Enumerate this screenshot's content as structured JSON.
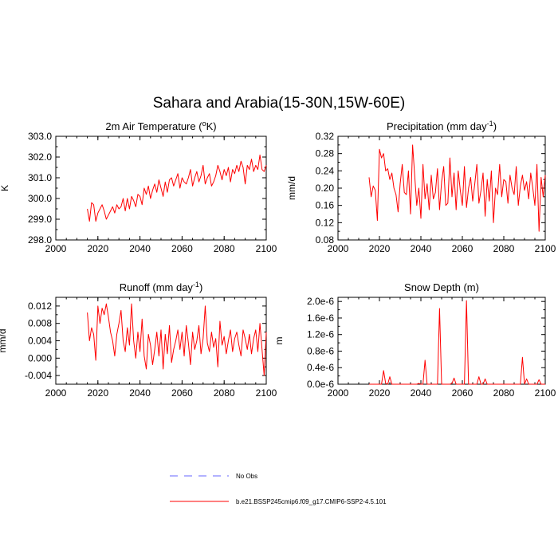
{
  "title": "Sahara and Arabia(15-30N,15W-60E)",
  "legend": [
    {
      "label": "No Obs",
      "color": "#6666ff",
      "dash": true
    },
    {
      "label": "b.e21.BSSP245cmip6.f09_g17.CMIP6-SSP2-4.5.101",
      "color": "#ff0000",
      "dash": false
    }
  ],
  "chart_data": [
    {
      "type": "line",
      "title": "2m Air Temperature (",
      "title_sup": "o",
      "title_end": "K)",
      "xlabel": "",
      "ylabel": "K",
      "xlim": [
        2000,
        2100
      ],
      "ylim": [
        298.0,
        303.0
      ],
      "xticks": [
        2000,
        2020,
        2040,
        2060,
        2080,
        2100
      ],
      "yticks": [
        298.0,
        299.0,
        300.0,
        301.0,
        302.0,
        303.0
      ],
      "ytick_labels": [
        "298.0",
        "299.0",
        "300.0",
        "301.0",
        "302.0",
        "303.0"
      ],
      "x_start": 2015,
      "values": [
        299.5,
        298.9,
        299.8,
        299.7,
        298.9,
        299.3,
        299.5,
        299.7,
        299.4,
        299.0,
        299.2,
        299.4,
        299.6,
        299.3,
        299.7,
        299.5,
        299.6,
        300.0,
        299.4,
        300.0,
        299.5,
        300.1,
        299.9,
        299.6,
        300.2,
        300.1,
        299.7,
        300.5,
        300.2,
        300.6,
        300.0,
        300.4,
        300.7,
        300.3,
        300.9,
        300.5,
        300.1,
        300.8,
        300.3,
        300.9,
        301.0,
        300.6,
        300.9,
        301.2,
        300.5,
        301.0,
        300.8,
        300.7,
        301.0,
        301.4,
        300.6,
        301.0,
        301.3,
        300.8,
        301.1,
        301.6,
        300.7,
        301.0,
        301.2,
        300.6,
        300.8,
        301.1,
        301.6,
        301.3,
        300.9,
        301.4,
        301.1,
        301.5,
        300.8,
        301.4,
        301.2,
        301.6,
        301.3,
        301.8,
        301.5,
        300.7,
        301.6,
        301.4,
        301.9,
        301.3,
        301.6,
        301.4,
        302.1,
        301.4,
        301.3,
        301.6
      ],
      "stroke": "#ff0000"
    },
    {
      "type": "line",
      "title": "Precipitation (mm day",
      "title_sup": "-1",
      "title_end": ")",
      "xlabel": "",
      "ylabel": "mm/d",
      "xlim": [
        2000,
        2100
      ],
      "ylim": [
        0.08,
        0.32
      ],
      "xticks": [
        2000,
        2020,
        2040,
        2060,
        2080,
        2100
      ],
      "yticks": [
        0.08,
        0.12,
        0.16,
        0.2,
        0.24,
        0.28,
        0.32
      ],
      "ytick_labels": [
        "0.08",
        "0.12",
        "0.16",
        "0.20",
        "0.24",
        "0.28",
        "0.32"
      ],
      "x_start": 2015,
      "values": [
        0.225,
        0.18,
        0.205,
        0.195,
        0.125,
        0.29,
        0.27,
        0.28,
        0.24,
        0.245,
        0.22,
        0.235,
        0.2,
        0.185,
        0.145,
        0.21,
        0.255,
        0.19,
        0.185,
        0.24,
        0.14,
        0.3,
        0.23,
        0.16,
        0.2,
        0.13,
        0.255,
        0.175,
        0.21,
        0.15,
        0.23,
        0.175,
        0.19,
        0.245,
        0.15,
        0.215,
        0.25,
        0.16,
        0.165,
        0.27,
        0.18,
        0.235,
        0.15,
        0.24,
        0.195,
        0.16,
        0.25,
        0.155,
        0.2,
        0.225,
        0.17,
        0.21,
        0.255,
        0.165,
        0.195,
        0.235,
        0.135,
        0.22,
        0.17,
        0.24,
        0.12,
        0.2,
        0.185,
        0.255,
        0.18,
        0.22,
        0.215,
        0.165,
        0.23,
        0.2,
        0.185,
        0.25,
        0.16,
        0.205,
        0.23,
        0.195,
        0.215,
        0.175,
        0.235,
        0.2,
        0.16,
        0.255,
        0.1,
        0.225,
        0.18,
        0.23
      ],
      "stroke": "#ff0000"
    },
    {
      "type": "line",
      "title": "Runoff (mm day",
      "title_sup": "-1",
      "title_end": ")",
      "xlabel": "",
      "ylabel": "mm/d",
      "xlim": [
        2000,
        2100
      ],
      "ylim": [
        -0.006,
        0.014
      ],
      "xticks": [
        2000,
        2020,
        2040,
        2060,
        2080,
        2100
      ],
      "yticks": [
        -0.004,
        0.0,
        0.004,
        0.008,
        0.012
      ],
      "ytick_labels": [
        "-0.004",
        "0.000",
        "0.004",
        "0.008",
        "0.012"
      ],
      "x_start": 2015,
      "values": [
        0.0105,
        0.004,
        0.007,
        0.0055,
        -0.0005,
        0.012,
        0.008,
        0.0115,
        0.01,
        0.0125,
        0.0095,
        0.006,
        0.004,
        0.0005,
        0.0055,
        0.008,
        0.011,
        0.004,
        0.0015,
        0.007,
        0.003,
        0.0125,
        0.004,
        0.0,
        0.006,
        0.0015,
        0.009,
        0.0005,
        -0.0025,
        0.0055,
        0.003,
        -0.0015,
        0.002,
        0.006,
        0.0005,
        0.0065,
        -0.0025,
        0.0055,
        0.001,
        0.0075,
        -0.001,
        0.002,
        0.004,
        0.0065,
        0.002,
        0.006,
        0.0005,
        0.0075,
        0.0035,
        -0.0015,
        0.006,
        0.002,
        0.004,
        0.0075,
        0.001,
        0.0045,
        0.012,
        0.0035,
        0.0015,
        0.006,
        0.0025,
        0.0045,
        -0.002,
        0.0085,
        0.003,
        0.005,
        0.001,
        0.004,
        0.0065,
        0.0015,
        0.0045,
        0.006,
        0.003,
        0.0005,
        0.0065,
        0.0045,
        0.002,
        0.0055,
        0.001,
        0.0045,
        0.0065,
        0.0015,
        0.008,
        0.002,
        -0.004,
        0.006
      ],
      "stroke": "#ff0000"
    },
    {
      "type": "line",
      "title": "Snow Depth (m)",
      "title_sup": "",
      "title_end": "",
      "xlabel": "",
      "ylabel": "m",
      "xlim": [
        2000,
        2100
      ],
      "ylim": [
        0.0,
        2.1e-06
      ],
      "xticks": [
        2000,
        2020,
        2040,
        2060,
        2080,
        2100
      ],
      "yticks": [
        0.0,
        4e-07,
        8e-07,
        1.2e-06,
        1.6e-06,
        2e-06
      ],
      "ytick_labels": [
        "0.0e-6",
        "0.4e-6",
        "0.8e-6",
        "1.2e-6",
        "1.6e-6",
        "2.0e-6"
      ],
      "x_start": 2015,
      "values": [
        0.0,
        0.0,
        0.0,
        0.0,
        0.0,
        0.0,
        0.0,
        3.3e-07,
        2e-08,
        0.0,
        1.8e-07,
        0.0,
        0.0,
        0.0,
        0.0,
        0.0,
        0.0,
        0.0,
        0.0,
        0.0,
        0.0,
        0.0,
        0.0,
        0.0,
        2e-08,
        0.0,
        0.0,
        5.8e-07,
        0.0,
        0.0,
        0.0,
        0.0,
        0.0,
        0.0,
        1.83e-06,
        0.0,
        0.0,
        0.0,
        0.0,
        0.0,
        2e-08,
        1.5e-07,
        0.0,
        0.0,
        0.0,
        0.0,
        0.0,
        2.02e-06,
        0.0,
        0.0,
        0.0,
        0.0,
        0.0,
        1.8e-07,
        0.0,
        0.0,
        1.3e-07,
        0.0,
        0.0,
        0.0,
        0.0,
        0.0,
        0.0,
        0.0,
        0.0,
        0.0,
        0.0,
        0.0,
        0.0,
        0.0,
        0.0,
        0.0,
        0.0,
        0.0,
        6.5e-07,
        0.0,
        1.3e-07,
        0.0,
        0.0,
        0.0,
        0.0,
        0.0,
        1.1e-07,
        0.0,
        0.0,
        0.0
      ],
      "stroke": "#ff0000"
    }
  ]
}
